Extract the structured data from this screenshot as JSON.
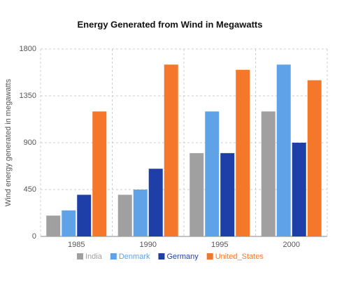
{
  "chart_data": {
    "type": "bar",
    "title": "Energy Generated from Wind in Megawatts",
    "y_label": "Wind energy generated in megawatts",
    "categories": [
      "1985",
      "1990",
      "1995",
      "2000"
    ],
    "series": [
      {
        "name": "India",
        "color": "#a0a0a0",
        "values": [
          200,
          400,
          800,
          1200
        ]
      },
      {
        "name": "Denmark",
        "color": "#5fa2e8",
        "values": [
          250,
          450,
          1200,
          1650
        ]
      },
      {
        "name": "Germany",
        "color": "#1f3fa8",
        "values": [
          400,
          650,
          800,
          900
        ]
      },
      {
        "name": "United_States",
        "color": "#f5782a",
        "values": [
          1200,
          1650,
          1600,
          1500
        ]
      }
    ],
    "ylim": [
      0,
      1800
    ],
    "yticks": [
      0,
      450,
      900,
      1350,
      1800
    ],
    "grid": true
  }
}
